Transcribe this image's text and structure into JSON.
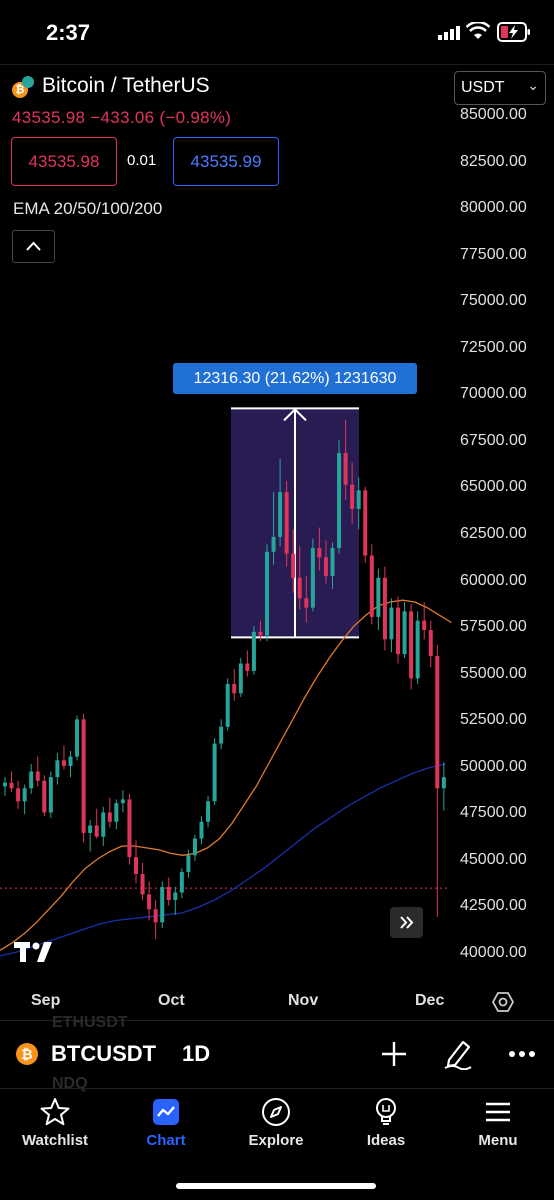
{
  "status_bar": {
    "time": "2:37"
  },
  "header": {
    "symbol_title": "Bitcoin / TetherUS",
    "price_line": "43535.98 −433.06 (−0.98%)",
    "currency": "USDT",
    "sell_price": "43535.98",
    "spread": "0.01",
    "buy_price": "43535.99"
  },
  "indicator_label": "EMA 20/50/100/200",
  "y_axis": [
    "85000.00",
    "82500.00",
    "80000.00",
    "77500.00",
    "75000.00",
    "72500.00",
    "70000.00",
    "67500.00",
    "65000.00",
    "62500.00",
    "60000.00",
    "57500.00",
    "55000.00",
    "52500.00",
    "50000.00",
    "47500.00",
    "45000.00",
    "42500.00",
    "40000.00"
  ],
  "x_axis": [
    "Sep",
    "Oct",
    "Nov",
    "Dec"
  ],
  "measure_label": "12316.30 (21.62%) 1231630",
  "symbol_bar": {
    "symbol": "BTCUSDT",
    "interval": "1D",
    "ghost_above": "ETHUSDT",
    "ghost_below": "NDQ"
  },
  "tabs": [
    {
      "label": "Watchlist",
      "icon": "star-icon"
    },
    {
      "label": "Chart",
      "icon": "chart-icon"
    },
    {
      "label": "Explore",
      "icon": "compass-icon"
    },
    {
      "label": "Ideas",
      "icon": "lightbulb-icon"
    },
    {
      "label": "Menu",
      "icon": "menu-icon"
    }
  ],
  "colors": {
    "up": "#26a69a",
    "down": "#e0355b",
    "accent": "#2962ff",
    "ema_orange": "#e07a2a",
    "ema_blue": "#1a2fa8",
    "measure_fill": "#2d1f5c"
  },
  "chart_data": {
    "type": "candlestick",
    "ylim": [
      40000,
      85000
    ],
    "candles": [
      [
        49000,
        49500,
        48500,
        49200
      ],
      [
        49200,
        49800,
        48700,
        48900
      ],
      [
        48900,
        49300,
        47800,
        48200
      ],
      [
        48200,
        49100,
        47500,
        48900
      ],
      [
        48900,
        50200,
        48600,
        49800
      ],
      [
        49800,
        50600,
        49000,
        49300
      ],
      [
        49300,
        49600,
        47400,
        47600
      ],
      [
        47600,
        49800,
        47300,
        49500
      ],
      [
        49500,
        50800,
        49100,
        50400
      ],
      [
        50400,
        51200,
        49900,
        50100
      ],
      [
        50100,
        50900,
        49500,
        50600
      ],
      [
        50600,
        52800,
        50400,
        52600
      ],
      [
        52600,
        52900,
        46000,
        46500
      ],
      [
        46500,
        47200,
        45500,
        46900
      ],
      [
        46900,
        47800,
        46200,
        46300
      ],
      [
        46300,
        47900,
        45800,
        47600
      ],
      [
        47600,
        48400,
        46800,
        47100
      ],
      [
        47100,
        48300,
        46700,
        48100
      ],
      [
        48100,
        48800,
        47600,
        48300
      ],
      [
        48300,
        48600,
        44800,
        45200
      ],
      [
        45200,
        46100,
        43800,
        44300
      ],
      [
        44300,
        44900,
        42900,
        43200
      ],
      [
        43200,
        43900,
        41800,
        42400
      ],
      [
        42400,
        42900,
        40800,
        41700
      ],
      [
        41700,
        43900,
        41400,
        43600
      ],
      [
        43600,
        44100,
        42600,
        42900
      ],
      [
        42900,
        43600,
        42100,
        43300
      ],
      [
        43300,
        44600,
        43000,
        44400
      ],
      [
        44400,
        45600,
        44100,
        45300
      ],
      [
        45300,
        46400,
        45000,
        46200
      ],
      [
        46200,
        47400,
        45900,
        47100
      ],
      [
        47100,
        48500,
        46800,
        48200
      ],
      [
        48200,
        51600,
        48000,
        51300
      ],
      [
        51300,
        52600,
        51000,
        52200
      ],
      [
        52200,
        54800,
        52000,
        54500
      ],
      [
        54500,
        55300,
        53600,
        54000
      ],
      [
        54000,
        55900,
        53800,
        55600
      ],
      [
        55600,
        56300,
        54900,
        55200
      ],
      [
        55200,
        57600,
        55000,
        57300
      ],
      [
        57300,
        57900,
        56800,
        57100
      ],
      [
        57100,
        62000,
        56800,
        61600
      ],
      [
        61600,
        64800,
        60900,
        62400
      ],
      [
        62400,
        66600,
        61900,
        64800
      ],
      [
        64800,
        65400,
        60800,
        61500
      ],
      [
        61500,
        62800,
        59400,
        60200
      ],
      [
        60200,
        61900,
        58500,
        59100
      ],
      [
        59100,
        60300,
        57800,
        58600
      ],
      [
        58600,
        62300,
        58400,
        61800
      ],
      [
        61800,
        62900,
        60600,
        61300
      ],
      [
        61300,
        62200,
        59900,
        60300
      ],
      [
        60300,
        62100,
        59600,
        61800
      ],
      [
        61800,
        67600,
        61500,
        66900
      ],
      [
        66900,
        68700,
        64400,
        65200
      ],
      [
        65200,
        66400,
        63100,
        63900
      ],
      [
        63900,
        65600,
        62800,
        64900
      ],
      [
        64900,
        65100,
        61000,
        61400
      ],
      [
        61400,
        62000,
        57700,
        58100
      ],
      [
        58100,
        60700,
        57400,
        60200
      ],
      [
        60200,
        60800,
        56300,
        56900
      ],
      [
        56900,
        59100,
        56200,
        58600
      ],
      [
        58600,
        59200,
        55600,
        56100
      ],
      [
        56100,
        58900,
        55900,
        58400
      ],
      [
        58400,
        58800,
        54200,
        54800
      ],
      [
        54800,
        58400,
        54500,
        57900
      ],
      [
        57900,
        58900,
        56900,
        57400
      ],
      [
        57400,
        57900,
        55400,
        56000
      ],
      [
        56000,
        56600,
        42000,
        48900
      ],
      [
        48900,
        50300,
        47700,
        49500
      ]
    ],
    "ema_orange": [
      40200,
      40600,
      41100,
      41700,
      42400,
      43100,
      43900,
      44600,
      45100,
      45500,
      45800,
      45800,
      45700,
      45600,
      45400,
      45300,
      45400,
      45700,
      46200,
      47000,
      48000,
      49000,
      50200,
      51400,
      52600,
      53800,
      54900,
      55900,
      56800,
      57600,
      58200,
      58700,
      58900,
      59000,
      58900,
      58600,
      58200,
      57800
    ],
    "ema_blue": [
      39900,
      40100,
      40400,
      40700,
      41000,
      41300,
      41600,
      41800,
      41900,
      42000,
      42100,
      42200,
      42500,
      42900,
      43400,
      44000,
      44600,
      45300,
      46000,
      46700,
      47300,
      47900,
      48400,
      48900,
      49300,
      49700,
      50000,
      50200
    ],
    "measure": {
      "from": 57000,
      "to": 69300,
      "change": "12316.30",
      "percent": "21.62%"
    },
    "last_price": 43535.98
  }
}
